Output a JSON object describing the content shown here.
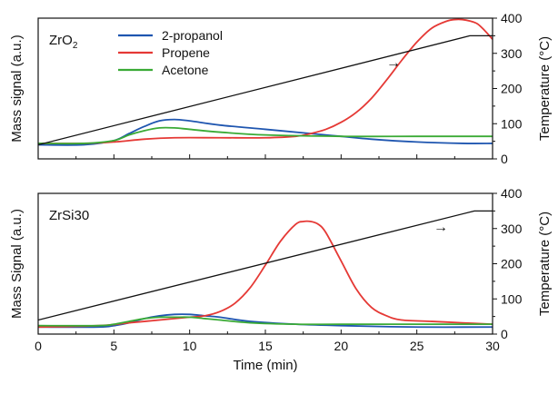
{
  "chart_data": [
    {
      "type": "line",
      "panel_label": "ZrO",
      "panel_label_sub": "2",
      "xlim": [
        0,
        30
      ],
      "ylabel": "Mass signal (a.u.)",
      "y2label": "Temperature (°C)",
      "y2lim": [
        0,
        400
      ],
      "y2ticks": [
        "0",
        "100",
        "200",
        "300",
        "400"
      ],
      "legend": "top-left",
      "series": [
        {
          "name": "2-propanol",
          "color": "#1f56b0",
          "axis": "left",
          "x": [
            0,
            3,
            5,
            6,
            7,
            8,
            9,
            10,
            12,
            15,
            18,
            20,
            22,
            25,
            28,
            30
          ],
          "y": [
            0.1,
            0.1,
            0.13,
            0.18,
            0.23,
            0.27,
            0.28,
            0.27,
            0.24,
            0.21,
            0.18,
            0.16,
            0.14,
            0.12,
            0.11,
            0.11
          ]
        },
        {
          "name": "Propene",
          "color": "#e53935",
          "axis": "left",
          "x": [
            0,
            3,
            5,
            7,
            9,
            12,
            15,
            17,
            18,
            19,
            20,
            21,
            22,
            23,
            24,
            25,
            26,
            27,
            27.5,
            28,
            28.5,
            29,
            29.5,
            30
          ],
          "y": [
            0.11,
            0.11,
            0.12,
            0.14,
            0.15,
            0.15,
            0.15,
            0.16,
            0.18,
            0.21,
            0.26,
            0.33,
            0.43,
            0.56,
            0.7,
            0.83,
            0.93,
            0.98,
            0.99,
            0.99,
            0.98,
            0.96,
            0.91,
            0.85
          ]
        },
        {
          "name": "Acetone",
          "color": "#3aaa35",
          "axis": "left",
          "x": [
            0,
            3,
            5,
            6,
            7,
            8,
            9,
            10,
            12,
            15,
            20,
            25,
            30
          ],
          "y": [
            0.11,
            0.11,
            0.13,
            0.17,
            0.2,
            0.22,
            0.22,
            0.21,
            0.19,
            0.17,
            0.16,
            0.16,
            0.16
          ]
        },
        {
          "name": "Temperature",
          "color": "#111111",
          "axis": "right",
          "x": [
            0,
            28.5,
            30
          ],
          "y": [
            40,
            350,
            350
          ]
        }
      ]
    },
    {
      "type": "line",
      "panel_label": "ZrSi30",
      "panel_label_sub": "",
      "xlabel": "Time (min)",
      "xlim": [
        0,
        30
      ],
      "xticks": [
        "0",
        "5",
        "10",
        "15",
        "20",
        "25",
        "30"
      ],
      "ylabel": "Mass Signal (a.u.)",
      "y2label": "Temperature (°C)",
      "y2lim": [
        0,
        400
      ],
      "y2ticks": [
        "0",
        "100",
        "200",
        "300",
        "400"
      ],
      "series": [
        {
          "name": "2-propanol",
          "color": "#1f56b0",
          "axis": "left",
          "x": [
            0,
            4,
            5,
            6,
            7,
            8,
            9,
            10,
            11,
            12,
            14,
            17,
            20,
            25,
            30
          ],
          "y": [
            0.05,
            0.05,
            0.06,
            0.08,
            0.11,
            0.13,
            0.14,
            0.14,
            0.13,
            0.12,
            0.09,
            0.07,
            0.06,
            0.05,
            0.05
          ]
        },
        {
          "name": "Propene",
          "color": "#e53935",
          "axis": "left",
          "x": [
            0,
            4,
            6,
            8,
            10,
            11,
            12,
            13,
            14,
            15,
            16,
            17,
            17.5,
            18,
            18.5,
            19,
            20,
            21,
            22,
            23,
            24,
            26,
            28,
            30
          ],
          "y": [
            0.05,
            0.06,
            0.08,
            0.1,
            0.12,
            0.13,
            0.16,
            0.22,
            0.33,
            0.49,
            0.66,
            0.78,
            0.8,
            0.8,
            0.78,
            0.72,
            0.52,
            0.32,
            0.19,
            0.13,
            0.1,
            0.09,
            0.08,
            0.07
          ]
        },
        {
          "name": "Acetone",
          "color": "#3aaa35",
          "axis": "left",
          "x": [
            0,
            4,
            5,
            6,
            7,
            8,
            9,
            10,
            11,
            12,
            14,
            17,
            20,
            25,
            30
          ],
          "y": [
            0.06,
            0.06,
            0.07,
            0.09,
            0.11,
            0.12,
            0.12,
            0.12,
            0.11,
            0.1,
            0.08,
            0.07,
            0.07,
            0.07,
            0.07
          ]
        },
        {
          "name": "Temperature",
          "color": "#111111",
          "axis": "right",
          "x": [
            0,
            28.8,
            30
          ],
          "y": [
            40,
            350,
            350
          ]
        }
      ]
    }
  ],
  "arrow_glyph": "→"
}
